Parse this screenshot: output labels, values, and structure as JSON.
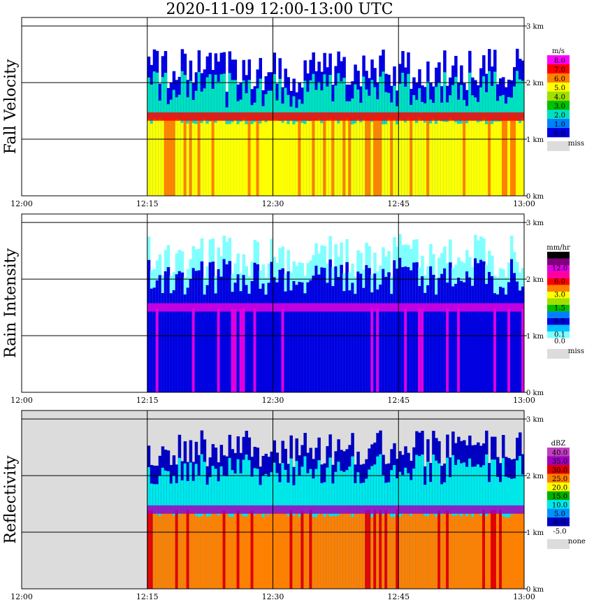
{
  "title": "2020-11-09   12:00-13:00 UTC",
  "colors": {
    "missing": "#dcdcdc",
    "axis": "#000000"
  },
  "chart_data": [
    {
      "type": "heatmap",
      "title": "Fall Velocity",
      "x_ticks": [
        "12:00",
        "12:15",
        "12:30",
        "12:45",
        "13:00"
      ],
      "y_ticks": [
        "0 km",
        "1 km",
        "2 km",
        "3 km"
      ],
      "xlim": [
        "12:00",
        "13:00"
      ],
      "ylim_km": [
        0,
        3.0
      ],
      "legend": {
        "unit": "m/s",
        "entries": [
          {
            "label": "8.0",
            "color": "#ff00ff"
          },
          {
            "label": "7.0",
            "color": "#ff0000"
          },
          {
            "label": "6.0",
            "color": "#ff8000"
          },
          {
            "label": "5.0",
            "color": "#ffff00"
          },
          {
            "label": "4.0",
            "color": "#a0e000"
          },
          {
            "label": "3.0",
            "color": "#00c000"
          },
          {
            "label": "2.0",
            "color": "#00e0c0"
          },
          {
            "label": "1.0",
            "color": "#0080ff"
          },
          {
            "label": "0.0",
            "color": "#0000e0"
          }
        ],
        "missing_label": "miss"
      },
      "echo_structure": {
        "start_time": "12:15",
        "end_time": "13:00",
        "top_km_range": [
          1.4,
          2.6
        ],
        "dominant_color": "#ffff00",
        "band_km": 1.4
      }
    },
    {
      "type": "heatmap",
      "title": "Rain Intensity",
      "x_ticks": [
        "12:00",
        "12:15",
        "12:30",
        "12:45",
        "13:00"
      ],
      "y_ticks": [
        "0 km",
        "1 km",
        "2 km",
        "3 km"
      ],
      "xlim": [
        "12:00",
        "13:00"
      ],
      "ylim_km": [
        0,
        3.0
      ],
      "legend": {
        "unit": "mm/hr",
        "entries": [
          {
            "label": "48.0",
            "color": "#000000"
          },
          {
            "label": "",
            "color": "#800080"
          },
          {
            "label": "12.0",
            "color": "#e000e0"
          },
          {
            "label": "",
            "color": "#ff00a0"
          },
          {
            "label": "6.0",
            "color": "#ff0000"
          },
          {
            "label": "",
            "color": "#ff8000"
          },
          {
            "label": "3.0",
            "color": "#ffff00"
          },
          {
            "label": "",
            "color": "#a0e000"
          },
          {
            "label": "1.5",
            "color": "#00c000"
          },
          {
            "label": "",
            "color": "#0080ff"
          },
          {
            "label": "0.5",
            "color": "#0000e0"
          },
          {
            "label": "",
            "color": "#00c0ff"
          },
          {
            "label": "0.1",
            "color": "#80ffff"
          },
          {
            "label": "0.0",
            "color": "#ffffff"
          }
        ],
        "missing_label": "miss"
      },
      "echo_structure": {
        "start_time": "12:15",
        "end_time": "13:00",
        "top_km_range": [
          1.6,
          2.8
        ],
        "dominant_color": "#0000e0",
        "band_km": 1.5
      }
    },
    {
      "type": "heatmap",
      "title": "Reflectivity",
      "x_ticks": [
        "12:00",
        "12:15",
        "12:30",
        "12:45",
        "13:00"
      ],
      "y_ticks": [
        "0 km",
        "1 km",
        "2 km",
        "3 km"
      ],
      "xlim": [
        "12:00",
        "13:00"
      ],
      "ylim_km": [
        0,
        3.0
      ],
      "legend": {
        "unit": "dBZ",
        "entries": [
          {
            "label": "40.0",
            "color": "#c040c0"
          },
          {
            "label": "35.0",
            "color": "#a000c0"
          },
          {
            "label": "30.0",
            "color": "#e00000"
          },
          {
            "label": "25.0",
            "color": "#ff8000"
          },
          {
            "label": "20.0",
            "color": "#ffff00"
          },
          {
            "label": "15.0",
            "color": "#00b000"
          },
          {
            "label": "10.0",
            "color": "#00e8e8"
          },
          {
            "label": "5.0",
            "color": "#0090ff"
          },
          {
            "label": "0.0",
            "color": "#0000c0"
          },
          {
            "label": "-5.0",
            "color": "#ffffff"
          }
        ],
        "missing_label": "none"
      },
      "echo_structure": {
        "start_time": "12:15",
        "end_time": "13:00",
        "top_km_range": [
          1.8,
          2.8
        ],
        "dominant_color": "#ff8000",
        "band_km": 1.4
      }
    }
  ]
}
